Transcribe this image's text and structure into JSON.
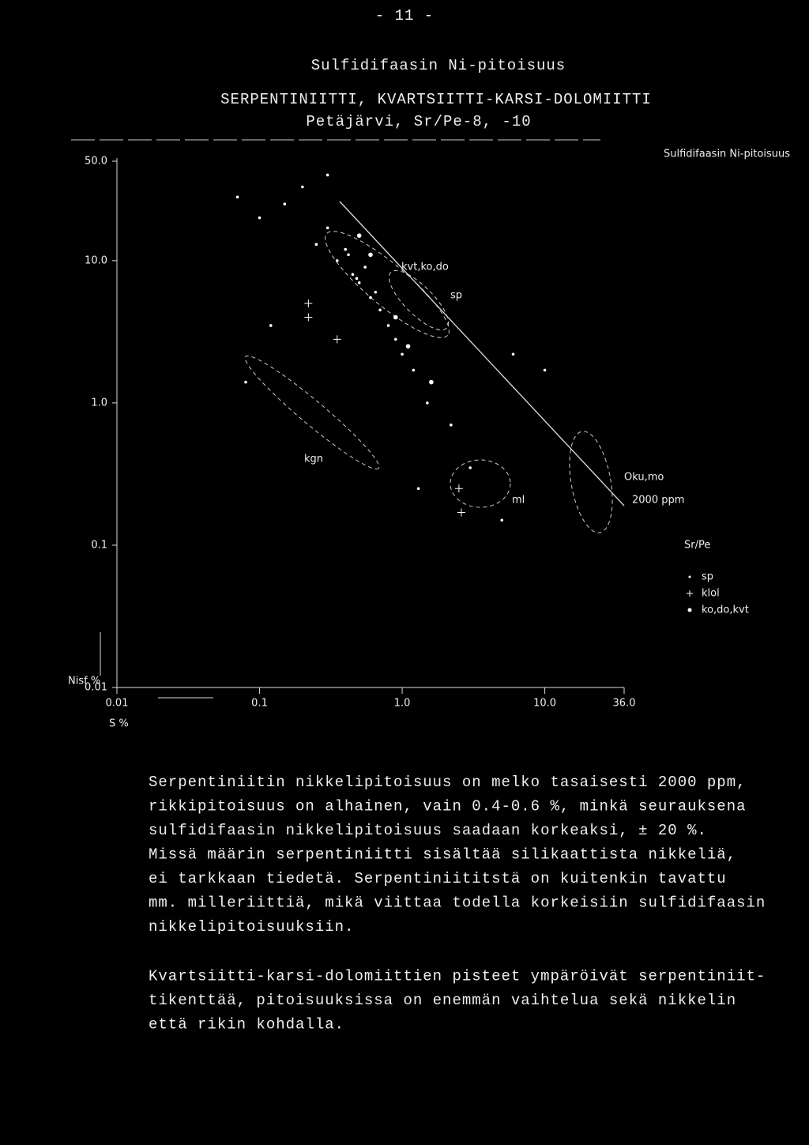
{
  "page_number": "- 11 -",
  "chart_data": {
    "type": "scatter",
    "title": "Sulfidifaasin Ni-pitoisuus",
    "subtitle": "SERPENTINIITTI, KVARTSIITTI-KARSI-DOLOMIITTI",
    "subtitle2": "Petäjärvi, Sr/Pe-8, -10",
    "corner_label": "Sulfidifaasin Ni-pitoisuus",
    "x_label": "S %",
    "y_label": "Nisf %",
    "log_x": true,
    "log_y": true,
    "xlim": [
      0.01,
      36
    ],
    "ylim": [
      0.01,
      50
    ],
    "xticks": [
      0.01,
      0.1,
      {
        "value": 1,
        "label": "1.0"
      },
      {
        "value": 10,
        "label": "10.0"
      },
      {
        "value": 36,
        "label": "36.0"
      }
    ],
    "yticks": [
      0.01,
      0.1,
      {
        "value": 1,
        "label": "1.0"
      },
      {
        "value": 10,
        "label": "10.0"
      },
      {
        "value": 50,
        "label": "50.0"
      }
    ],
    "legend_title": "Sr/Pe",
    "series": [
      {
        "name": "sp",
        "marker": "dot",
        "color": "#ffffff",
        "x": [
          0.07,
          0.1,
          0.15,
          0.25,
          0.3,
          0.35,
          0.4,
          0.45,
          0.5,
          0.6,
          0.7,
          0.8,
          0.9,
          1.0,
          1.2,
          1.5,
          0.55,
          0.65,
          0.42,
          0.48,
          2.2,
          3,
          0.3,
          0.2,
          5,
          0.12,
          0.08,
          6,
          10,
          1.3
        ],
        "y": [
          28,
          20,
          25,
          13,
          17,
          10,
          12,
          8,
          7,
          5.5,
          4.5,
          3.5,
          2.8,
          2.2,
          1.7,
          1,
          9,
          6,
          11,
          7.5,
          0.7,
          0.35,
          40,
          33,
          0.15,
          3.5,
          1.4,
          2.2,
          1.7,
          0.25
        ]
      },
      {
        "name": "klol",
        "marker": "plus",
        "color": "#ffffff",
        "x": [
          0.22,
          0.22,
          0.35,
          2.5,
          2.6
        ],
        "y": [
          5,
          4,
          2.8,
          0.25,
          0.17
        ]
      },
      {
        "name": "ko,do,kvt",
        "marker": "bigdot",
        "color": "#ffffff",
        "x": [
          0.5,
          0.6,
          1.1,
          0.9,
          1.6
        ],
        "y": [
          15,
          11,
          2.5,
          4,
          1.4
        ]
      }
    ],
    "annotations": [
      "kvt,ko,do",
      "sp",
      "kgn",
      "ml",
      "Oku,mo",
      "2000 ppm"
    ]
  },
  "paragraphs": [
    [
      "Serpentiniitin nikkelipitoisuus on melko tasaisesti 2000 ppm,",
      "rikkipitoisuus on alhainen, vain 0.4-0.6 %, minkä seurauksena",
      "sulfidifaasin nikkelipitoisuus saadaan korkeaksi, ± 20 %.",
      "Missä määrin serpentiniitti sisältää silikaattista nikkeliä,",
      "ei tarkkaan tiedetä. Serpentiniititstä on kuitenkin tavattu",
      "mm. milleriittiä, mikä viittaa todella korkeisiin sulfidifaasin",
      "nikkelipitoisuuksiin."
    ],
    [
      "Kvartsiitti-karsi-dolomiittien pisteet ympäröivät serpentiniit-",
      "tikenttää, pitoisuuksissa on enemmän vaihtelua sekä nikkelin",
      "että rikin kohdalla."
    ]
  ]
}
